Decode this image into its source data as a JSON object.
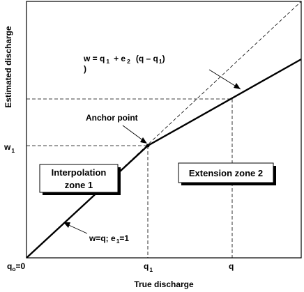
{
  "axes": {
    "x_label": "True discharge",
    "y_label": "Estimated discharge"
  },
  "ticks": {
    "x_origin_main": "q",
    "x_origin_sub": "o",
    "x_origin_suffix": "=0",
    "x_q1_main": "q",
    "x_q1_sub": "1",
    "x_q": "q",
    "y_w1_main": "w",
    "y_w1_sub": "1"
  },
  "annotations": {
    "anchor_point": "Anchor point",
    "extension_formula": {
      "w_eq": "w = q",
      "sub1": "1",
      "plus_e": "+ e",
      "sub2": "2",
      "paren_open": "(q – q",
      "sub3": "1",
      "paren_close": ")",
      "wrap": ")"
    },
    "interpolation_formula": {
      "text": "w=q; e",
      "sub": "1",
      "tail": "=1"
    }
  },
  "zones": {
    "interpolation_line1": "Interpolation",
    "interpolation_line2": "zone 1",
    "extension": "Extension zone 2"
  }
}
